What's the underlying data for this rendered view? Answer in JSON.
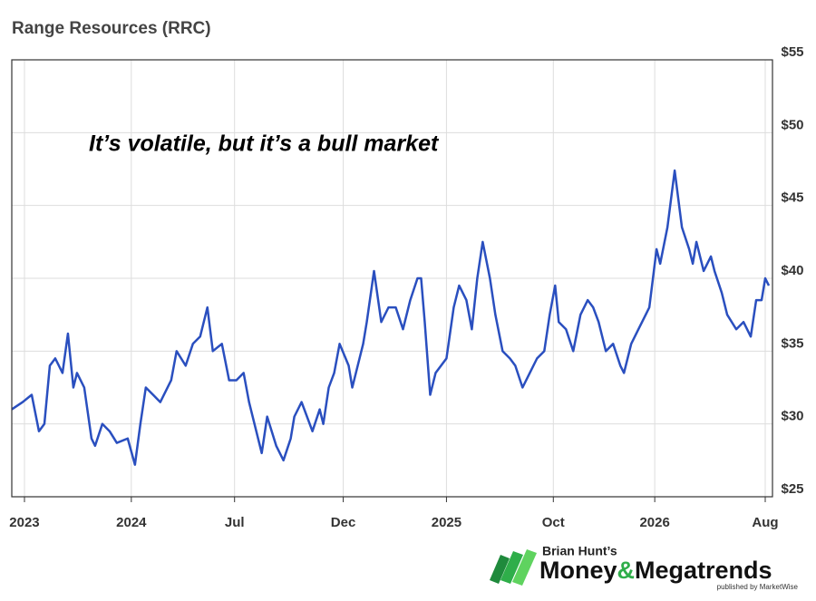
{
  "chart_data": {
    "type": "line",
    "title": "Range Resources (RRC)",
    "annotation": "It’s volatile, but it’s a bull market",
    "x": [
      0,
      3,
      5.5,
      7.5,
      9,
      10.5,
      12,
      14,
      15.5,
      17,
      18,
      20,
      22,
      23,
      25,
      27,
      29,
      32,
      34,
      35.5,
      37,
      39,
      41,
      44,
      45.5,
      48,
      50,
      52,
      54,
      55.5,
      58,
      60,
      62,
      64,
      65.5,
      67,
      69,
      70.5,
      73,
      75,
      77,
      78,
      80,
      83,
      85,
      86,
      87.5,
      89,
      90.5,
      93,
      94,
      97,
      98,
      100,
      102,
      104,
      106,
      108,
      110,
      112,
      113,
      114,
      115.5,
      117,
      120,
      122,
      123.5,
      125.5,
      127,
      128.5,
      130,
      132,
      133.5,
      135.5,
      137.5,
      139,
      141,
      143,
      145,
      147,
      148.5,
      150,
      151,
      153,
      155,
      157,
      159,
      160.5,
      162,
      164,
      166,
      168,
      169,
      171,
      173,
      175,
      176,
      178,
      179,
      181,
      183,
      185,
      187,
      188,
      189,
      191,
      193,
      194,
      196,
      197.5,
      200,
      202,
      204,
      205.5,
      207,
      208,
      209
    ],
    "series": [
      {
        "name": "RRC",
        "color": "#2a4fbf",
        "values": [
          31,
          31.5,
          32,
          29.5,
          30,
          34,
          34.5,
          33.5,
          36.2,
          32.5,
          33.5,
          32.5,
          29,
          28.5,
          30,
          29.5,
          28.7,
          29,
          27.2,
          30,
          32.5,
          32,
          31.5,
          33,
          35,
          34,
          35.5,
          36,
          38,
          35,
          35.5,
          33,
          33,
          33.5,
          31.5,
          30,
          28,
          30.5,
          28.5,
          27.5,
          29,
          30.5,
          31.5,
          29.5,
          31,
          30,
          32.5,
          33.5,
          35.5,
          34,
          32.5,
          35.5,
          37,
          40.5,
          37,
          38,
          38,
          36.5,
          38.5,
          40,
          40,
          37,
          32,
          33.5,
          34.5,
          38,
          39.5,
          38.5,
          36.5,
          40,
          42.5,
          40,
          37.5,
          35,
          34.5,
          34,
          32.5,
          33.5,
          34.5,
          35,
          37.5,
          39.5,
          37,
          36.5,
          35,
          37.5,
          38.5,
          38,
          37,
          35,
          35.5,
          34,
          33.5,
          35.5,
          36.5,
          37.5,
          38,
          42,
          41,
          43.5,
          47.4,
          43.5,
          42,
          41,
          42.5,
          40.5,
          41.5,
          40.5,
          39,
          37.5,
          36.5,
          37,
          36,
          38.5,
          38.5,
          40,
          39.5
        ]
      }
    ],
    "xlim": [
      0,
      210
    ],
    "xticks": [
      {
        "value": 3.5,
        "label": "2023"
      },
      {
        "value": 33,
        "label": "2024"
      },
      {
        "value": 61.5,
        "label": "Jul"
      },
      {
        "value": 91.5,
        "label": "Dec"
      },
      {
        "value": 120,
        "label": "2025"
      },
      {
        "value": 149.5,
        "label": "Oct"
      },
      {
        "value": 177.5,
        "label": "2026"
      },
      {
        "value": 208,
        "label": "Aug"
      }
    ],
    "ylim": [
      25,
      55
    ],
    "yticks": [
      {
        "value": 25,
        "label": "$25"
      },
      {
        "value": 30,
        "label": "$30"
      },
      {
        "value": 35,
        "label": "$35"
      },
      {
        "value": 40,
        "label": "$40"
      },
      {
        "value": 45,
        "label": "$45"
      },
      {
        "value": 50,
        "label": "$50"
      },
      {
        "value": 55,
        "label": "$55"
      }
    ],
    "grid": true
  },
  "logo": {
    "byline": "Brian Hunt’s",
    "brand_left": "Money",
    "brand_amp": "&",
    "brand_right": "Megatrends",
    "publisher": "published by MarketWise"
  }
}
